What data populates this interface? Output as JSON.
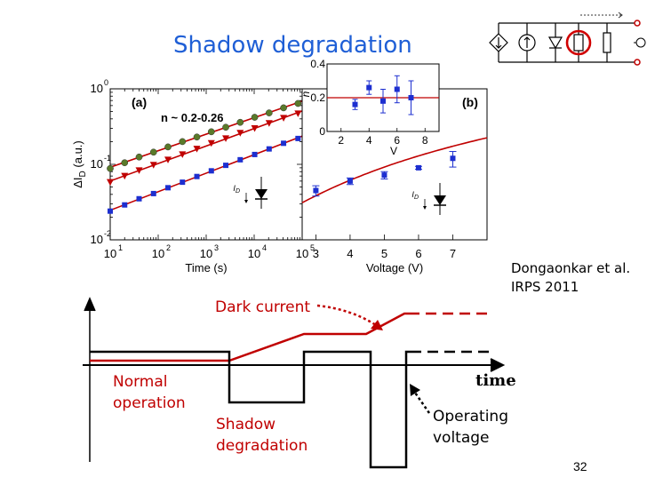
{
  "slide": {
    "title": "Shadow degradation",
    "citation_line1": "Dongaonkar et al.",
    "citation_line2": "IRPS 2011",
    "page_number": "32"
  },
  "panel_a": {
    "label": "(a)",
    "annotation": "n ~ 0.2-0.26",
    "xlabel": "Time (s)",
    "ylabel_prefix": "ΔI",
    "ylabel_sub": "D",
    "ylabel_suffix": " (a.u.)",
    "diode_label": "I",
    "diode_label_sub": "D",
    "xticks": [
      {
        "base": "10",
        "exp": "1"
      },
      {
        "base": "10",
        "exp": "2"
      },
      {
        "base": "10",
        "exp": "3"
      },
      {
        "base": "10",
        "exp": "4"
      },
      {
        "base": "10",
        "exp": "5"
      }
    ],
    "yticks": [
      {
        "base": "10",
        "exp": "0"
      },
      {
        "base": "10",
        "exp": "-1"
      },
      {
        "base": "10",
        "exp": "-2"
      }
    ]
  },
  "panel_b": {
    "label": "(b)",
    "xlabel": "Voltage (V)",
    "diode_label": "I",
    "diode_label_sub": "D",
    "xticks": [
      "3",
      "4",
      "5",
      "6",
      "7"
    ],
    "inset": {
      "ylabel": "n",
      "xlabel": "V",
      "xticks": [
        "2",
        "4",
        "6",
        "8"
      ],
      "yticks": [
        "0",
        "0.2",
        "0.4"
      ]
    }
  },
  "timing": {
    "dark_current_label": "Dark current",
    "normal_line1": "Normal",
    "normal_line2": "operation",
    "shadow_line1": "Shadow",
    "shadow_line2": "degradation",
    "operating_line1": "Operating",
    "operating_line2": "voltage",
    "time_label": "time"
  },
  "colors": {
    "title": "#1f5fd6",
    "red_series": "#c00000",
    "blue_series": "#1d2fd0",
    "green_series": "#5a7a2a",
    "highlight_ring": "#d00000"
  },
  "chart_data": [
    {
      "type": "scatter",
      "title": "(a)",
      "xlabel": "Time (s)",
      "ylabel": "ΔI_D (a.u.)",
      "xscale": "log",
      "yscale": "log",
      "xlim": [
        10,
        100000
      ],
      "ylim": [
        0.01,
        1
      ],
      "annotation": "n ~ 0.2-0.26",
      "series": [
        {
          "marker": "circle",
          "color": "#5a7a2a",
          "x": [
            10,
            20,
            40,
            80,
            160,
            320,
            640,
            1280,
            2560,
            5120,
            10240,
            20480,
            40960,
            81920
          ],
          "y": [
            0.088,
            0.105,
            0.125,
            0.145,
            0.17,
            0.2,
            0.23,
            0.27,
            0.31,
            0.36,
            0.42,
            0.48,
            0.56,
            0.64
          ]
        },
        {
          "marker": "triangle",
          "color": "#c00000",
          "x": [
            10,
            20,
            40,
            80,
            160,
            320,
            640,
            1280,
            2560,
            5120,
            10240,
            20480,
            40960,
            81920
          ],
          "y": [
            0.058,
            0.07,
            0.083,
            0.098,
            0.115,
            0.135,
            0.16,
            0.19,
            0.22,
            0.26,
            0.3,
            0.35,
            0.41,
            0.47
          ]
        },
        {
          "marker": "square",
          "color": "#1d2fd0",
          "x": [
            10,
            20,
            40,
            80,
            160,
            320,
            640,
            1280,
            2560,
            5120,
            10240,
            20480,
            40960,
            81920
          ],
          "y": [
            0.024,
            0.029,
            0.035,
            0.041,
            0.049,
            0.058,
            0.069,
            0.082,
            0.097,
            0.115,
            0.135,
            0.16,
            0.19,
            0.22
          ]
        }
      ]
    },
    {
      "type": "scatter",
      "title": "(b)",
      "xlabel": "Voltage (V)",
      "yscale": "log",
      "xlim": [
        2.6,
        8
      ],
      "ylim": [
        0.01,
        1
      ],
      "series": [
        {
          "marker": "square",
          "color": "#1d2fd0",
          "x": [
            3,
            4,
            5,
            6,
            7
          ],
          "y": [
            0.045,
            0.06,
            0.072,
            0.09,
            0.12
          ],
          "y_err": [
            0.007,
            0.006,
            0.008,
            0.004,
            0.028
          ]
        }
      ]
    },
    {
      "type": "scatter",
      "title": "inset",
      "xlabel": "V",
      "ylabel": "n",
      "xlim": [
        1,
        9
      ],
      "ylim": [
        0,
        0.4
      ],
      "series": [
        {
          "marker": "square",
          "color": "#1d2fd0",
          "x": [
            3,
            4,
            5,
            6,
            7
          ],
          "y": [
            0.16,
            0.26,
            0.18,
            0.25,
            0.2
          ],
          "y_err": [
            0.03,
            0.04,
            0.07,
            0.08,
            0.1
          ]
        }
      ]
    }
  ]
}
